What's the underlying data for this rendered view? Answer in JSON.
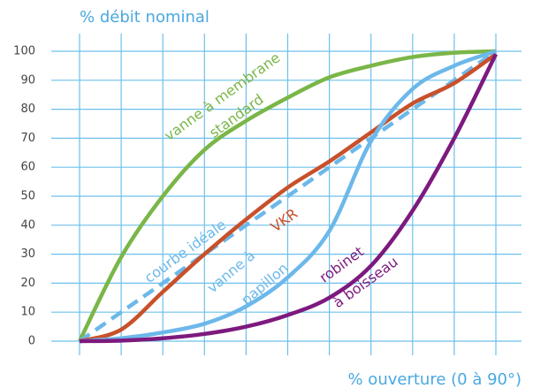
{
  "chart_data": {
    "type": "line",
    "title": "% débit nominal",
    "x_label": "% ouverture (0 à 90°)",
    "x": [
      0,
      9,
      18,
      27,
      36,
      45,
      54,
      63,
      72,
      81,
      90
    ],
    "xlim": [
      0,
      90
    ],
    "xticks": [
      0,
      9,
      18,
      27,
      36,
      45,
      54,
      63,
      72,
      81,
      90
    ],
    "ylim": [
      0,
      100
    ],
    "yticks": [
      0,
      10,
      20,
      30,
      40,
      50,
      60,
      70,
      80,
      90,
      100
    ],
    "grid": true,
    "series": [
      {
        "color": "#7ab648",
        "values": [
          0,
          29,
          50,
          66,
          76,
          84,
          91,
          95,
          98,
          99.5,
          100
        ]
      },
      {
        "color": "#6cb8ea",
        "dashed": true,
        "values": [
          0,
          10,
          20,
          30,
          40,
          50,
          60,
          70,
          80,
          90,
          100
        ]
      },
      {
        "color": "#c8502a",
        "values": [
          0,
          4,
          17,
          30,
          42,
          53,
          62,
          72,
          82,
          89,
          99
        ]
      },
      {
        "color": "#6cb8ea",
        "values": [
          0,
          1,
          3,
          6,
          12,
          22,
          38,
          69,
          87,
          95,
          100
        ]
      },
      {
        "color": "#7d1a7e",
        "values": [
          0,
          0.2,
          1,
          2.5,
          5,
          9,
          15,
          26,
          45,
          70,
          99
        ]
      }
    ],
    "annotations": [
      {
        "text": "vanne à membrane",
        "color": "#7ab648"
      },
      {
        "text": "standard",
        "color": "#7ab648"
      },
      {
        "text": "courbe idéale",
        "color": "#6cb8ea"
      },
      {
        "text": "VKR",
        "color": "#c8502a"
      },
      {
        "text": "vanne à",
        "color": "#6cb8ea"
      },
      {
        "text": "papillon",
        "color": "#6cb8ea"
      },
      {
        "text": "robinet",
        "color": "#7d1a7e"
      },
      {
        "text": "à boisseau",
        "color": "#7d1a7e"
      }
    ]
  }
}
